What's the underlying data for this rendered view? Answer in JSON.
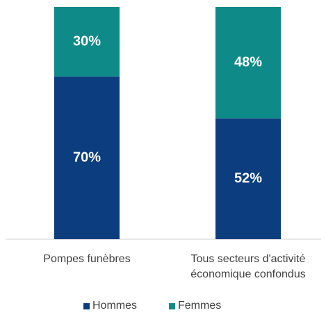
{
  "chart_data": {
    "type": "stacked_bar",
    "categories": [
      "Pompes funèbres",
      "Tous secteurs d'activité économique confondus"
    ],
    "series": [
      {
        "name": "Hommes",
        "color": "#0b3d7f",
        "values": [
          70,
          52
        ],
        "value_labels": [
          "70%",
          "52%"
        ]
      },
      {
        "name": "Femmes",
        "color": "#0e8a88",
        "values": [
          30,
          48
        ],
        "value_labels": [
          "30%",
          "48%"
        ]
      }
    ],
    "ylim": [
      0,
      100
    ]
  }
}
